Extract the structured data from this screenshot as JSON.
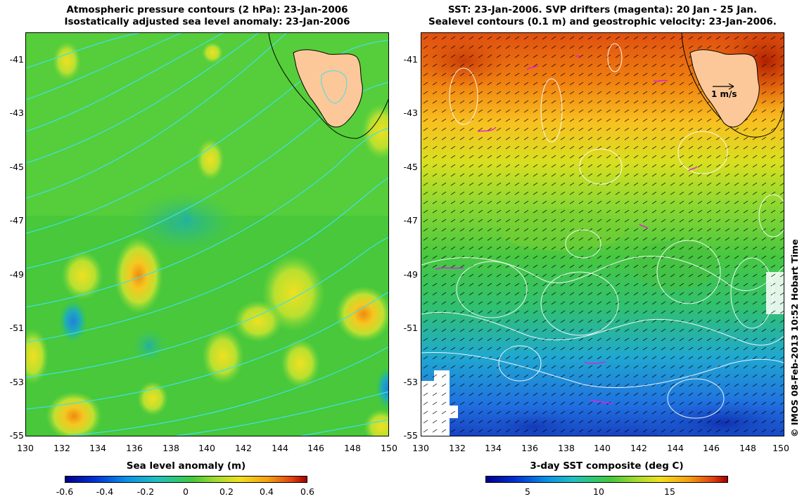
{
  "left_panel": {
    "title_line1": "Atmospheric pressure contours (2 hPa): 23-Jan-2006",
    "title_line2": "Isostatically adjusted sea level anomaly: 23-Jan-2006",
    "y_ticks": [
      "-41",
      "-43",
      "-45",
      "-47",
      "-49",
      "-51",
      "-53",
      "-55"
    ],
    "x_ticks": [
      "130",
      "132",
      "134",
      "136",
      "138",
      "140",
      "142",
      "144",
      "146",
      "148",
      "150"
    ],
    "colorbar": {
      "label": "Sea level anomaly (m)",
      "ticks": [
        "-0.6",
        "-0.4",
        "-0.2",
        "0",
        "0.2",
        "0.4",
        "0.6"
      ],
      "range": [
        -0.6,
        0.6
      ]
    },
    "contour_color": "#3fe0e8",
    "field_color": "#2fc83a"
  },
  "right_panel": {
    "title_line1": "SST: 23-Jan-2006. SVP drifters (magenta): 20 Jan - 25 Jan.",
    "title_line2": "Sealevel contours (0.1 m) and geostrophic velocity: 23-Jan-2006.",
    "y_ticks": [
      "-41",
      "-43",
      "-45",
      "-47",
      "-49",
      "-51",
      "-53",
      "-55"
    ],
    "x_ticks": [
      "130",
      "132",
      "134",
      "136",
      "138",
      "140",
      "142",
      "144",
      "146",
      "148",
      "150"
    ],
    "scale_label": "1 m/s",
    "colorbar": {
      "label": "3-day SST composite (deg C)",
      "ticks": [
        "5",
        "10",
        "15"
      ],
      "range": [
        2,
        19
      ]
    },
    "drifter_color": "#e020e0"
  },
  "map": {
    "lon_range": [
      130,
      150
    ],
    "lat_range": [
      -55,
      -40
    ],
    "land_color": "#fcc89a"
  },
  "copyright": "© IMOS 08-Feb-2013 10:52 Hobart Time"
}
